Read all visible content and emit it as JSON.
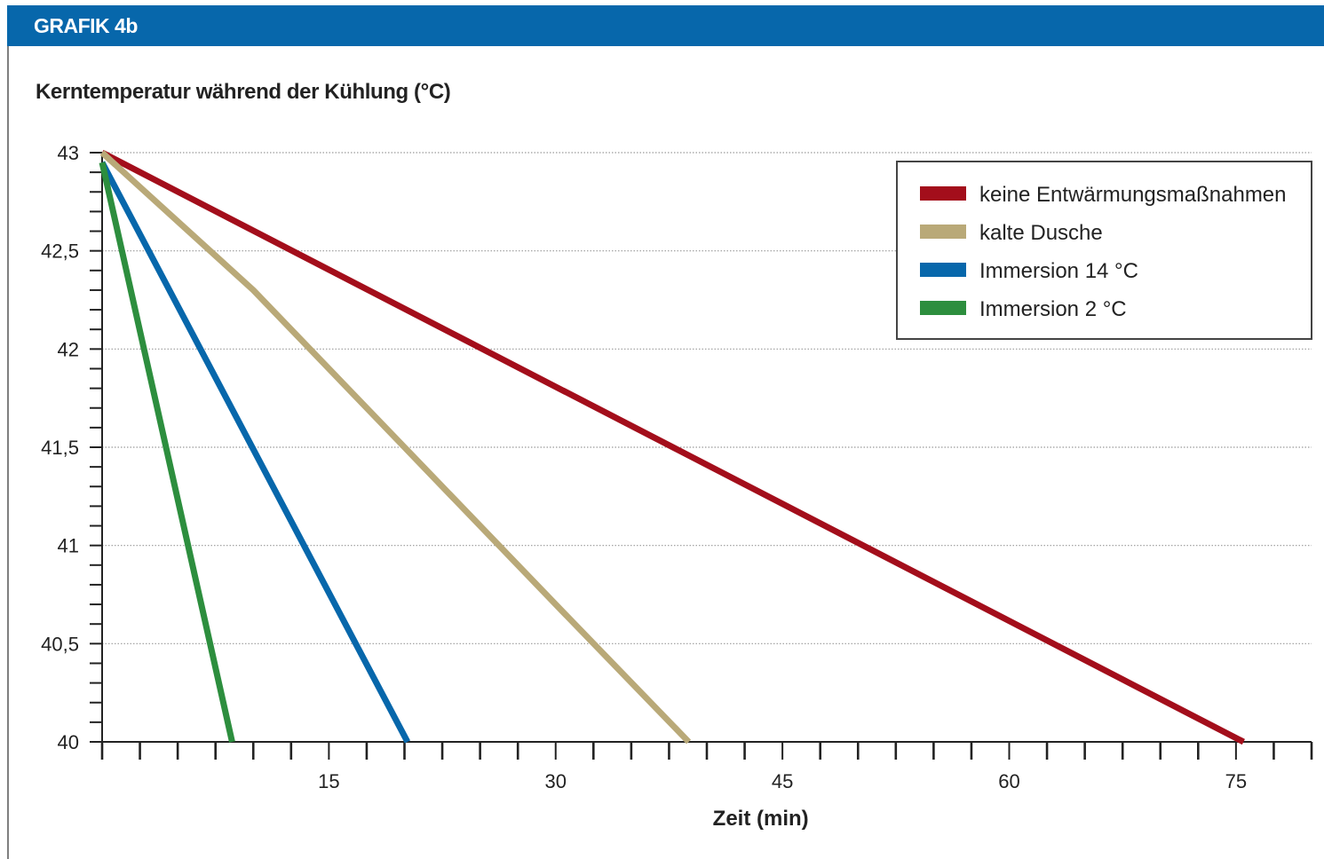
{
  "header": {
    "title": "GRAFIK 4b"
  },
  "chart_data": {
    "type": "line",
    "title": "Kerntemperatur während der Kühlung (°C)",
    "xlabel": "Zeit (min)",
    "ylabel": "",
    "xlim": [
      0,
      80
    ],
    "ylim": [
      40,
      43
    ],
    "x_ticks": [
      15,
      30,
      45,
      60,
      75
    ],
    "x_tick_labels": [
      "15",
      "30",
      "45",
      "60",
      "75"
    ],
    "x_minor_step": 2.5,
    "y_ticks": [
      40,
      40.5,
      41,
      41.5,
      42,
      42.5,
      43
    ],
    "y_tick_labels": [
      "40",
      "40,5",
      "41",
      "41,5",
      "42",
      "42,5",
      "43"
    ],
    "y_minor_step": 0.1,
    "grid": "horizontal-dotted",
    "legend_position": "top-right",
    "series": [
      {
        "name": "keine Entwärmungsmaßnahmen",
        "color": "#a30e1b",
        "x": [
          0,
          75.5
        ],
        "y": [
          43,
          40
        ]
      },
      {
        "name": "kalte Dusche",
        "color": "#b9a978",
        "x": [
          0,
          10,
          20,
          30,
          38.8
        ],
        "y": [
          43,
          42.3,
          41.5,
          40.7,
          40
        ]
      },
      {
        "name": "Immersion 14 °C",
        "color": "#0767ab",
        "x": [
          0,
          20.2
        ],
        "y": [
          42.95,
          40
        ]
      },
      {
        "name": "Immersion 2 °C",
        "color": "#2d8e3e",
        "x": [
          0,
          8.6
        ],
        "y": [
          42.95,
          40
        ]
      }
    ]
  }
}
